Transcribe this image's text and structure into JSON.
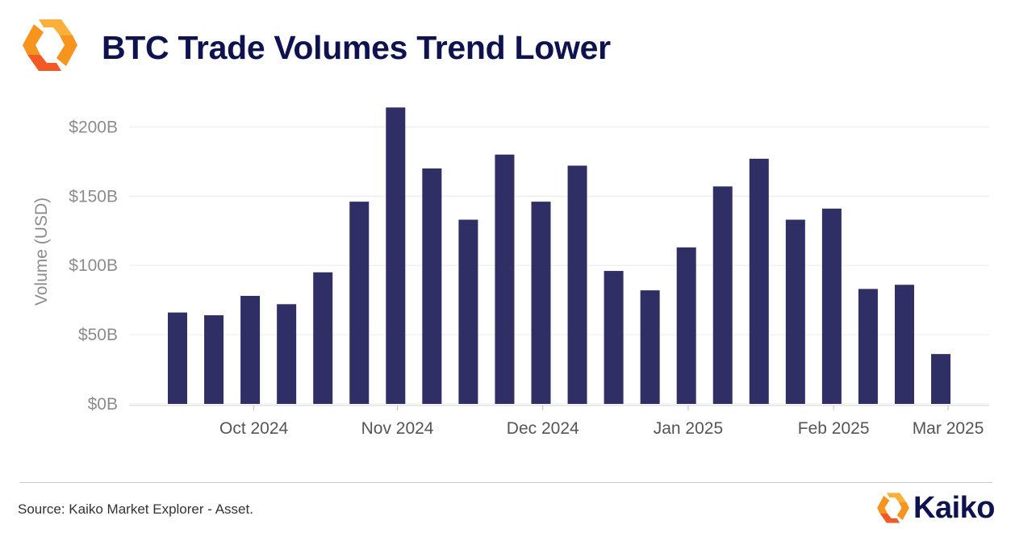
{
  "header": {
    "title": "BTC Trade Volumes Trend Lower",
    "logo_icon": "kaiko-logo-icon"
  },
  "footer": {
    "source": "Source: Kaiko Market Explorer - Asset.",
    "brand_name": "Kaiko"
  },
  "colors": {
    "bar": "#2f2f66",
    "title": "#0e1350",
    "axis_text": "#8c8c8c",
    "grid": "#ececec",
    "logo_orange": "#f7941d",
    "logo_yellow": "#fbb03b"
  },
  "chart_data": {
    "type": "bar",
    "title": "BTC Trade Volumes Trend Lower",
    "ylabel": "Volume (USD)",
    "xlabel": "",
    "ylim": [
      0,
      220
    ],
    "y_unit": "billions USD",
    "yticks": [
      0,
      50,
      100,
      150,
      200
    ],
    "ytick_labels": [
      "$0B",
      "$50B",
      "$100B",
      "$150B",
      "$200B"
    ],
    "grid": "horizontal",
    "x_axis": "weekly, Sep 2024 – Feb 2025",
    "xtick_labels": [
      "Oct 2024",
      "Nov 2024",
      "Dec 2024",
      "Jan 2025",
      "Feb 2025",
      "Mar 2025"
    ],
    "xtick_positions": [
      2.1,
      6.05,
      10.05,
      14.05,
      18.05,
      21.2
    ],
    "values": [
      66,
      64,
      78,
      72,
      95,
      146,
      214,
      170,
      133,
      180,
      146,
      172,
      96,
      82,
      113,
      157,
      177,
      133,
      141,
      83,
      86,
      36
    ]
  }
}
